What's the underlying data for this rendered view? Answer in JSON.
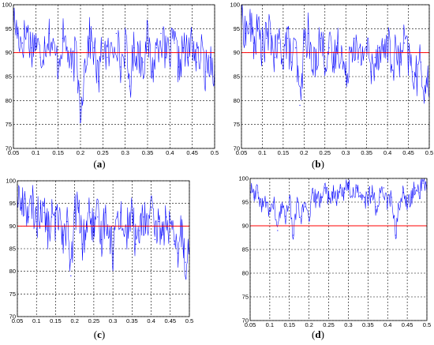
{
  "chart_data": [
    {
      "panel": "a",
      "caption": "(a)",
      "type": "line",
      "xlim": [
        0.05,
        0.5
      ],
      "ylim": [
        70,
        100
      ],
      "xticks": [
        "0.05",
        "0.1",
        "0.15",
        "0.2",
        "0.25",
        "0.3",
        "0.35",
        "0.4",
        "0.45",
        "0.5"
      ],
      "yticks": [
        "70",
        "75",
        "80",
        "85",
        "90",
        "95",
        "100"
      ],
      "grid": true,
      "threshold": 90,
      "series_color": "#0000ff",
      "threshold_color": "#ff0000",
      "x": [
        0.05,
        0.06,
        0.07,
        0.08,
        0.09,
        0.1,
        0.11,
        0.12,
        0.13,
        0.14,
        0.15,
        0.16,
        0.17,
        0.18,
        0.19,
        0.2,
        0.21,
        0.22,
        0.23,
        0.24,
        0.25,
        0.26,
        0.27,
        0.28,
        0.29,
        0.3,
        0.31,
        0.32,
        0.33,
        0.34,
        0.35,
        0.36,
        0.37,
        0.38,
        0.39,
        0.4,
        0.41,
        0.42,
        0.43,
        0.44,
        0.45,
        0.46,
        0.47,
        0.48,
        0.49,
        0.5
      ],
      "values": [
        97,
        94,
        92,
        95,
        91,
        93,
        89,
        92,
        94,
        90,
        88,
        93,
        91,
        86,
        90,
        78,
        88,
        93,
        91,
        84,
        92,
        89,
        90,
        94,
        87,
        92,
        83,
        91,
        90,
        88,
        93,
        86,
        91,
        94,
        89,
        90,
        92,
        87,
        91,
        89,
        93,
        88,
        90,
        86,
        89,
        87
      ]
    },
    {
      "panel": "b",
      "caption": "(b)",
      "type": "line",
      "xlim": [
        0.05,
        0.5
      ],
      "ylim": [
        70,
        100
      ],
      "xticks": [
        "0.05",
        "0.1",
        "0.15",
        "0.2",
        "0.25",
        "0.3",
        "0.35",
        "0.4",
        "0.45",
        "0.5"
      ],
      "yticks": [
        "70",
        "75",
        "80",
        "85",
        "90",
        "95",
        "100"
      ],
      "grid": true,
      "threshold": 90,
      "series_color": "#0000ff",
      "threshold_color": "#ff0000",
      "x": [
        0.05,
        0.06,
        0.07,
        0.08,
        0.09,
        0.1,
        0.11,
        0.12,
        0.13,
        0.14,
        0.15,
        0.16,
        0.17,
        0.18,
        0.19,
        0.2,
        0.21,
        0.22,
        0.23,
        0.24,
        0.25,
        0.26,
        0.27,
        0.28,
        0.29,
        0.3,
        0.31,
        0.32,
        0.33,
        0.34,
        0.35,
        0.36,
        0.37,
        0.38,
        0.39,
        0.4,
        0.41,
        0.42,
        0.43,
        0.44,
        0.45,
        0.46,
        0.47,
        0.48,
        0.49,
        0.5
      ],
      "values": [
        98,
        94,
        96,
        92,
        95,
        91,
        93,
        94,
        89,
        92,
        90,
        93,
        88,
        91,
        79,
        92,
        94,
        86,
        90,
        93,
        89,
        91,
        87,
        92,
        90,
        84,
        91,
        93,
        88,
        90,
        92,
        86,
        89,
        91,
        90,
        93,
        87,
        90,
        88,
        92,
        89,
        86,
        85,
        88,
        82,
        84
      ]
    },
    {
      "panel": "c",
      "caption": "(c)",
      "type": "line",
      "xlim": [
        0.05,
        0.5
      ],
      "ylim": [
        70,
        100
      ],
      "xticks": [
        "0.05",
        "0.1",
        "0.15",
        "0.2",
        "0.25",
        "0.3",
        "0.35",
        "0.4",
        "0.45",
        "0.5"
      ],
      "yticks": [
        "70",
        "75",
        "80",
        "85",
        "90",
        "95",
        "100"
      ],
      "grid": true,
      "threshold": 90,
      "series_color": "#0000ff",
      "threshold_color": "#ff0000",
      "x": [
        0.05,
        0.06,
        0.07,
        0.08,
        0.09,
        0.1,
        0.11,
        0.12,
        0.13,
        0.14,
        0.15,
        0.16,
        0.17,
        0.18,
        0.19,
        0.2,
        0.21,
        0.22,
        0.23,
        0.24,
        0.25,
        0.26,
        0.27,
        0.28,
        0.29,
        0.3,
        0.31,
        0.32,
        0.33,
        0.34,
        0.35,
        0.36,
        0.37,
        0.38,
        0.39,
        0.4,
        0.41,
        0.42,
        0.43,
        0.44,
        0.45,
        0.46,
        0.47,
        0.48,
        0.49,
        0.5
      ],
      "values": [
        98,
        94,
        96,
        92,
        95,
        91,
        94,
        93,
        89,
        92,
        90,
        94,
        88,
        91,
        79,
        93,
        94,
        86,
        90,
        93,
        89,
        92,
        87,
        93,
        90,
        84,
        92,
        93,
        88,
        90,
        93,
        86,
        89,
        92,
        90,
        94,
        87,
        91,
        88,
        92,
        89,
        86,
        84,
        90,
        82,
        85
      ]
    },
    {
      "panel": "d",
      "caption": "(d)",
      "type": "line",
      "xlim": [
        0.05,
        0.5
      ],
      "ylim": [
        70,
        100
      ],
      "xticks": [
        "0.05",
        "0.1",
        "0.15",
        "0.2",
        "0.25",
        "0.3",
        "0.35",
        "0.4",
        "0.45",
        "0.5"
      ],
      "yticks": [
        "70",
        "75",
        "80",
        "85",
        "90",
        "95",
        "100"
      ],
      "grid": true,
      "threshold": 90,
      "series_color": "#0000ff",
      "threshold_color": "#ff0000",
      "x": [
        0.05,
        0.06,
        0.07,
        0.08,
        0.09,
        0.1,
        0.11,
        0.12,
        0.13,
        0.14,
        0.15,
        0.16,
        0.17,
        0.18,
        0.19,
        0.2,
        0.21,
        0.22,
        0.23,
        0.24,
        0.25,
        0.26,
        0.27,
        0.28,
        0.29,
        0.3,
        0.31,
        0.32,
        0.33,
        0.34,
        0.35,
        0.36,
        0.37,
        0.38,
        0.39,
        0.4,
        0.41,
        0.42,
        0.43,
        0.44,
        0.45,
        0.46,
        0.47,
        0.48,
        0.49,
        0.5
      ],
      "values": [
        98,
        96,
        97,
        94,
        95,
        93,
        95,
        89,
        94,
        92,
        96,
        88,
        95,
        92,
        94,
        91,
        97,
        95,
        96,
        98,
        96,
        97,
        95,
        98,
        97,
        99,
        96,
        98,
        97,
        95,
        96,
        97,
        94,
        96,
        98,
        95,
        96,
        88,
        95,
        97,
        94,
        96,
        98,
        97,
        99,
        98
      ]
    }
  ]
}
